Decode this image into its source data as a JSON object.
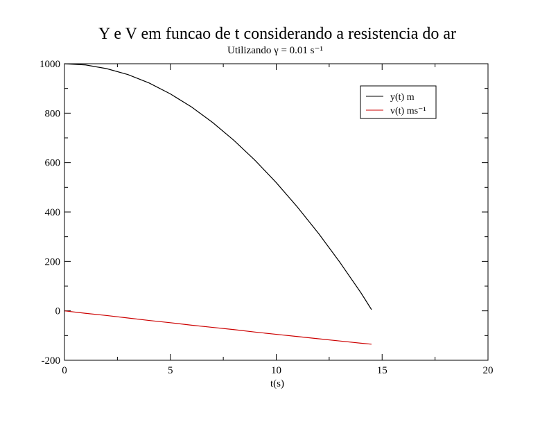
{
  "chart_data": {
    "type": "line",
    "title": "Y e V em funcao de t considerando a resistencia do ar",
    "subtitle": "Utilizando γ = 0.01 s⁻¹",
    "xlabel": "t(s)",
    "ylabel": "",
    "xlim": [
      0,
      20
    ],
    "ylim": [
      -200,
      1000
    ],
    "xticks": [
      0,
      5,
      10,
      15,
      20
    ],
    "yticks": [
      -200,
      0,
      200,
      400,
      600,
      800,
      1000
    ],
    "grid": false,
    "legend_position": "top-right",
    "series": [
      {
        "name": "y(t) m",
        "color": "#000000",
        "x": [
          0,
          1,
          2,
          3,
          4,
          5,
          6,
          7,
          8,
          9,
          10,
          11,
          12,
          13,
          14,
          14.5
        ],
        "y": [
          1000,
          995,
          980,
          956,
          922,
          878,
          825,
          762,
          690,
          609,
          519,
          420,
          313,
          197,
          73,
          5
        ]
      },
      {
        "name": "v(t) ms⁻¹",
        "color": "#cc0000",
        "x": [
          0,
          1,
          2,
          3,
          4,
          5,
          6,
          7,
          8,
          9,
          10,
          11,
          12,
          13,
          14,
          14.5
        ],
        "y": [
          0,
          -10,
          -19,
          -29,
          -39,
          -48,
          -58,
          -67,
          -76,
          -86,
          -95,
          -104,
          -113,
          -122,
          -131,
          -135
        ]
      }
    ]
  }
}
